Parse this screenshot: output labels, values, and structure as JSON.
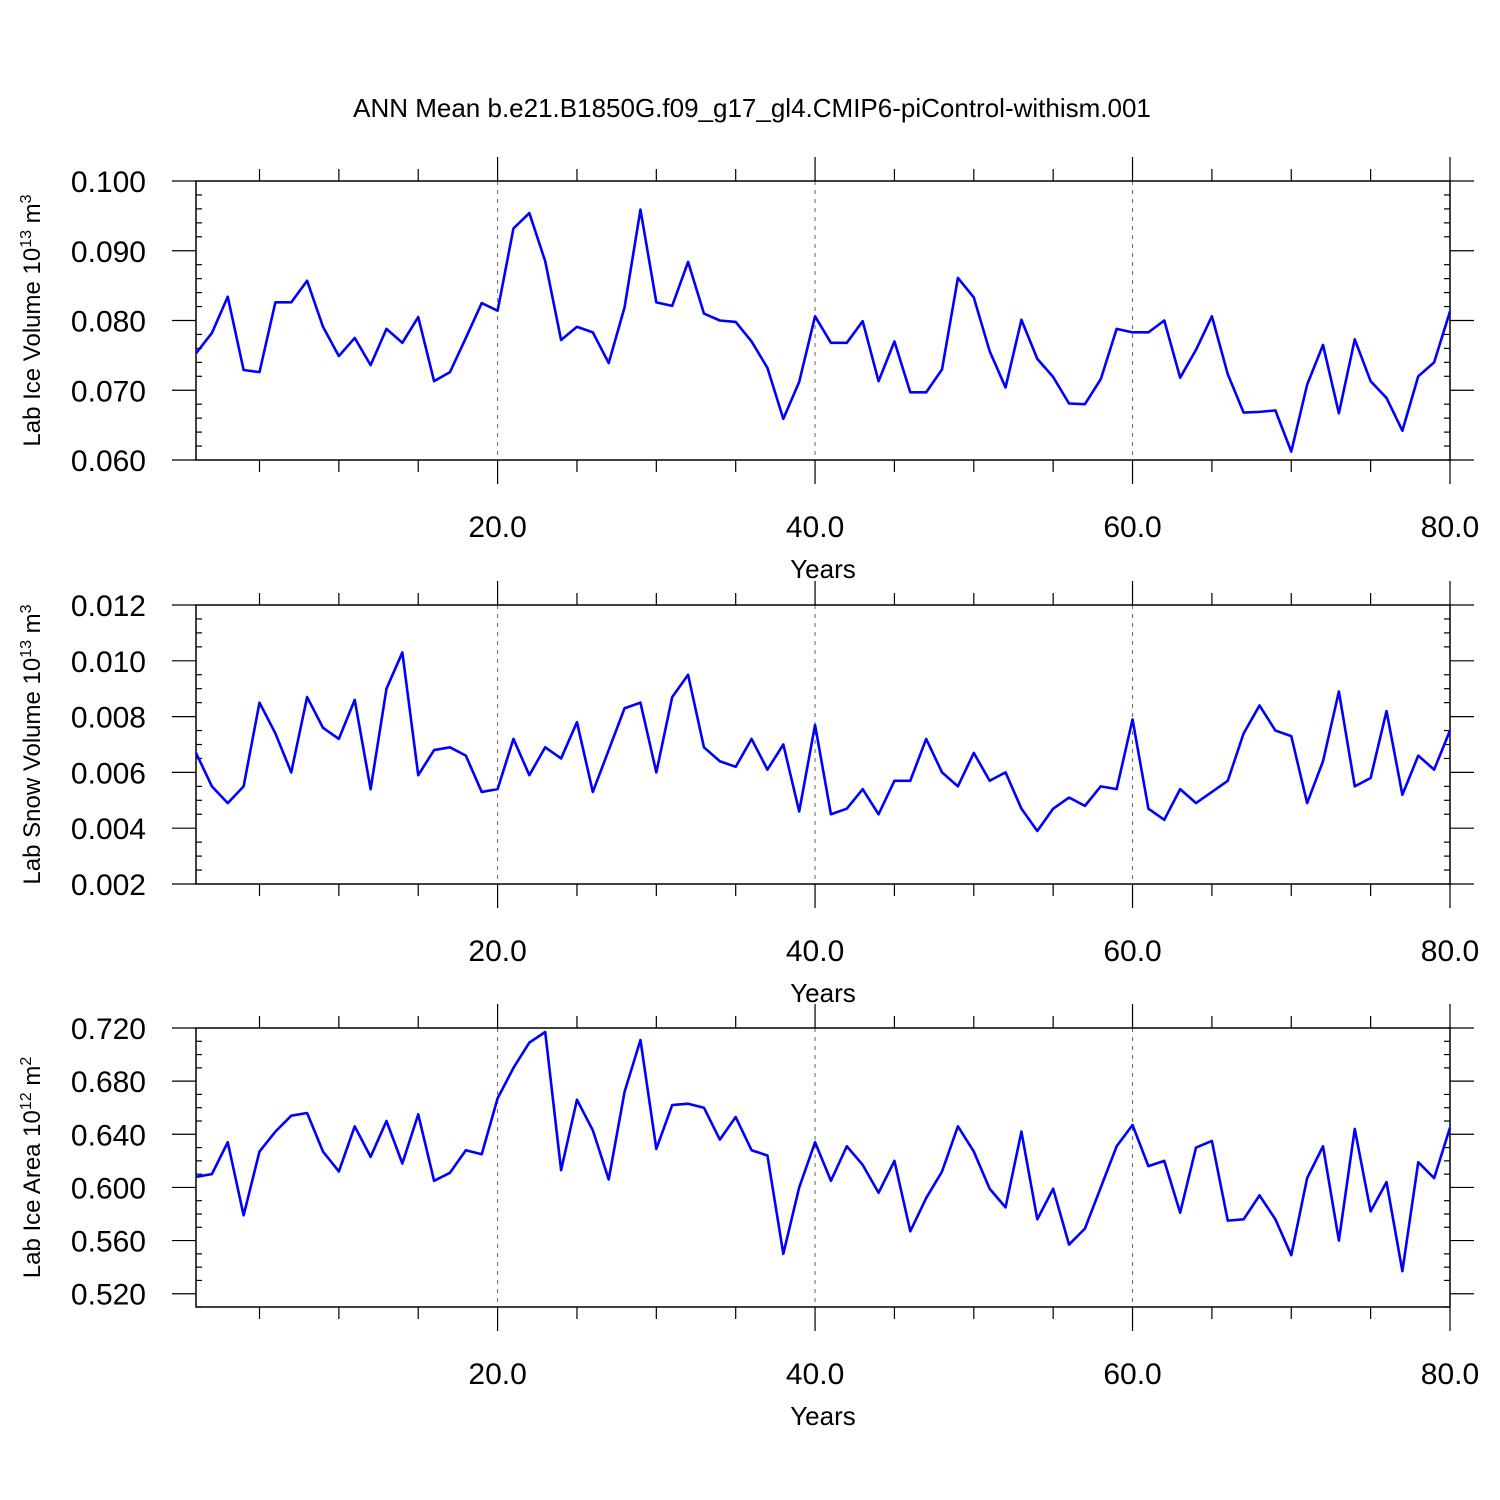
{
  "title": "ANN Mean b.e21.B1850G.f09_g17_gl4.CMIP6-piControl-withism.001",
  "chart_data": [
    {
      "type": "line",
      "ylabel_main": "Lab Ice Volume 10",
      "ylabel_exp": "13",
      "ylabel_unit": " m",
      "ylabel_unit_exp": "3",
      "xlabel": "Years",
      "xlim": [
        1,
        80
      ],
      "ylim": [
        0.06,
        0.1
      ],
      "yticks": [
        0.06,
        0.07,
        0.08,
        0.09,
        0.1
      ],
      "yticklabels": [
        "0.060",
        "0.070",
        "0.080",
        "0.090",
        "0.100"
      ],
      "yminor_step": 0.002,
      "xticks": [
        20,
        40,
        60,
        80
      ],
      "xticklabels": [
        "20.0",
        "40.0",
        "60.0",
        "80.0"
      ],
      "xminor": [
        5,
        10,
        15,
        25,
        30,
        35,
        45,
        50,
        55,
        65,
        70,
        75
      ],
      "grid_x": [
        20,
        40,
        60
      ],
      "color": "#0000ff",
      "x": [
        1,
        2,
        3,
        4,
        5,
        6,
        7,
        8,
        9,
        10,
        11,
        12,
        13,
        14,
        15,
        16,
        17,
        18,
        19,
        20,
        21,
        22,
        23,
        24,
        25,
        26,
        27,
        28,
        29,
        30,
        31,
        32,
        33,
        34,
        35,
        36,
        37,
        38,
        39,
        40,
        41,
        42,
        43,
        44,
        45,
        46,
        47,
        48,
        49,
        50,
        51,
        52,
        53,
        54,
        55,
        56,
        57,
        58,
        59,
        60,
        61,
        62,
        63,
        64,
        65,
        66,
        67,
        68,
        69,
        70,
        71,
        72,
        73,
        74,
        75,
        76,
        77,
        78,
        79,
        80
      ],
      "values": [
        0.0753,
        0.0782,
        0.0834,
        0.0729,
        0.0726,
        0.0826,
        0.0826,
        0.0857,
        0.0791,
        0.0749,
        0.0775,
        0.0736,
        0.0788,
        0.0768,
        0.0805,
        0.0713,
        0.0726,
        0.0775,
        0.0825,
        0.0814,
        0.0932,
        0.0954,
        0.0885,
        0.0772,
        0.0791,
        0.0783,
        0.0739,
        0.0819,
        0.0959,
        0.0826,
        0.0821,
        0.0884,
        0.081,
        0.08,
        0.0798,
        0.077,
        0.0732,
        0.0659,
        0.0712,
        0.0806,
        0.0768,
        0.0768,
        0.0799,
        0.0713,
        0.077,
        0.0697,
        0.0697,
        0.073,
        0.0861,
        0.0833,
        0.0756,
        0.0704,
        0.0801,
        0.0745,
        0.0719,
        0.0681,
        0.068,
        0.0716,
        0.0788,
        0.0783,
        0.0783,
        0.08,
        0.0718,
        0.0758,
        0.0806,
        0.0723,
        0.0668,
        0.0669,
        0.0671,
        0.0612,
        0.0708,
        0.0765,
        0.0667,
        0.0773,
        0.0713,
        0.0689,
        0.0642,
        0.072,
        0.074,
        0.0813
      ]
    },
    {
      "type": "line",
      "ylabel_main": "Lab Snow Volume 10",
      "ylabel_exp": "13",
      "ylabel_unit": " m",
      "ylabel_unit_exp": "3",
      "xlabel": "Years",
      "xlim": [
        1,
        80
      ],
      "ylim": [
        0.002,
        0.012
      ],
      "yticks": [
        0.002,
        0.004,
        0.006,
        0.008,
        0.01,
        0.012
      ],
      "yticklabels": [
        "0.002",
        "0.004",
        "0.006",
        "0.008",
        "0.010",
        "0.012"
      ],
      "yminor_step": 0.0005,
      "xticks": [
        20,
        40,
        60,
        80
      ],
      "xticklabels": [
        "20.0",
        "40.0",
        "60.0",
        "80.0"
      ],
      "xminor": [
        5,
        10,
        15,
        25,
        30,
        35,
        45,
        50,
        55,
        65,
        70,
        75
      ],
      "grid_x": [
        20,
        40,
        60
      ],
      "color": "#0000ff",
      "x": [
        1,
        2,
        3,
        4,
        5,
        6,
        7,
        8,
        9,
        10,
        11,
        12,
        13,
        14,
        15,
        16,
        17,
        18,
        19,
        20,
        21,
        22,
        23,
        24,
        25,
        26,
        27,
        28,
        29,
        30,
        31,
        32,
        33,
        34,
        35,
        36,
        37,
        38,
        39,
        40,
        41,
        42,
        43,
        44,
        45,
        46,
        47,
        48,
        49,
        50,
        51,
        52,
        53,
        54,
        55,
        56,
        57,
        58,
        59,
        60,
        61,
        62,
        63,
        64,
        65,
        66,
        67,
        68,
        69,
        70,
        71,
        72,
        73,
        74,
        75,
        76,
        77,
        78,
        79,
        80
      ],
      "values": [
        0.0067,
        0.0055,
        0.0049,
        0.0055,
        0.0085,
        0.0074,
        0.006,
        0.0087,
        0.0076,
        0.0072,
        0.0086,
        0.0054,
        0.009,
        0.0103,
        0.0059,
        0.0068,
        0.0069,
        0.0066,
        0.0053,
        0.0054,
        0.0072,
        0.0059,
        0.0069,
        0.0065,
        0.0078,
        0.0053,
        0.0068,
        0.0083,
        0.0085,
        0.006,
        0.0087,
        0.0095,
        0.0069,
        0.0064,
        0.0062,
        0.0072,
        0.0061,
        0.007,
        0.0046,
        0.0077,
        0.0045,
        0.0047,
        0.0054,
        0.0045,
        0.0057,
        0.0057,
        0.0072,
        0.006,
        0.0055,
        0.0067,
        0.0057,
        0.006,
        0.0047,
        0.0039,
        0.0047,
        0.0051,
        0.0048,
        0.0055,
        0.0054,
        0.0079,
        0.0047,
        0.0043,
        0.0054,
        0.0049,
        0.0053,
        0.0057,
        0.0074,
        0.0084,
        0.0075,
        0.0073,
        0.0049,
        0.0064,
        0.0089,
        0.0055,
        0.0058,
        0.0082,
        0.0052,
        0.0066,
        0.0061,
        0.0075
      ]
    },
    {
      "type": "line",
      "ylabel_main": "Lab Ice Area 10",
      "ylabel_exp": "12",
      "ylabel_unit": " m",
      "ylabel_unit_exp": "2",
      "xlabel": "Years",
      "xlim": [
        1,
        80
      ],
      "ylim": [
        0.51,
        0.72
      ],
      "yticks": [
        0.52,
        0.56,
        0.6,
        0.64,
        0.68,
        0.72
      ],
      "yticklabels": [
        "0.520",
        "0.560",
        "0.600",
        "0.640",
        "0.680",
        "0.720"
      ],
      "yminor_step": 0.01,
      "xticks": [
        20,
        40,
        60,
        80
      ],
      "xticklabels": [
        "20.0",
        "40.0",
        "60.0",
        "80.0"
      ],
      "xminor": [
        5,
        10,
        15,
        25,
        30,
        35,
        45,
        50,
        55,
        65,
        70,
        75
      ],
      "grid_x": [
        20,
        40,
        60
      ],
      "color": "#0000ff",
      "x": [
        1,
        2,
        3,
        4,
        5,
        6,
        7,
        8,
        9,
        10,
        11,
        12,
        13,
        14,
        15,
        16,
        17,
        18,
        19,
        20,
        21,
        22,
        23,
        24,
        25,
        26,
        27,
        28,
        29,
        30,
        31,
        32,
        33,
        34,
        35,
        36,
        37,
        38,
        39,
        40,
        41,
        42,
        43,
        44,
        45,
        46,
        47,
        48,
        49,
        50,
        51,
        52,
        53,
        54,
        55,
        56,
        57,
        58,
        59,
        60,
        61,
        62,
        63,
        64,
        65,
        66,
        67,
        68,
        69,
        70,
        71,
        72,
        73,
        74,
        75,
        76,
        77,
        78,
        79,
        80
      ],
      "values": [
        0.608,
        0.61,
        0.634,
        0.579,
        0.627,
        0.642,
        0.654,
        0.656,
        0.627,
        0.612,
        0.646,
        0.623,
        0.65,
        0.618,
        0.655,
        0.605,
        0.611,
        0.628,
        0.625,
        0.667,
        0.69,
        0.709,
        0.717,
        0.613,
        0.666,
        0.643,
        0.606,
        0.672,
        0.711,
        0.629,
        0.662,
        0.663,
        0.66,
        0.636,
        0.653,
        0.628,
        0.624,
        0.55,
        0.6,
        0.634,
        0.605,
        0.631,
        0.617,
        0.596,
        0.62,
        0.567,
        0.592,
        0.612,
        0.646,
        0.627,
        0.599,
        0.585,
        0.642,
        0.576,
        0.599,
        0.557,
        0.569,
        0.6,
        0.631,
        0.647,
        0.616,
        0.62,
        0.581,
        0.63,
        0.635,
        0.575,
        0.576,
        0.594,
        0.576,
        0.549,
        0.607,
        0.631,
        0.56,
        0.644,
        0.582,
        0.604,
        0.537,
        0.619,
        0.607,
        0.645
      ]
    }
  ]
}
